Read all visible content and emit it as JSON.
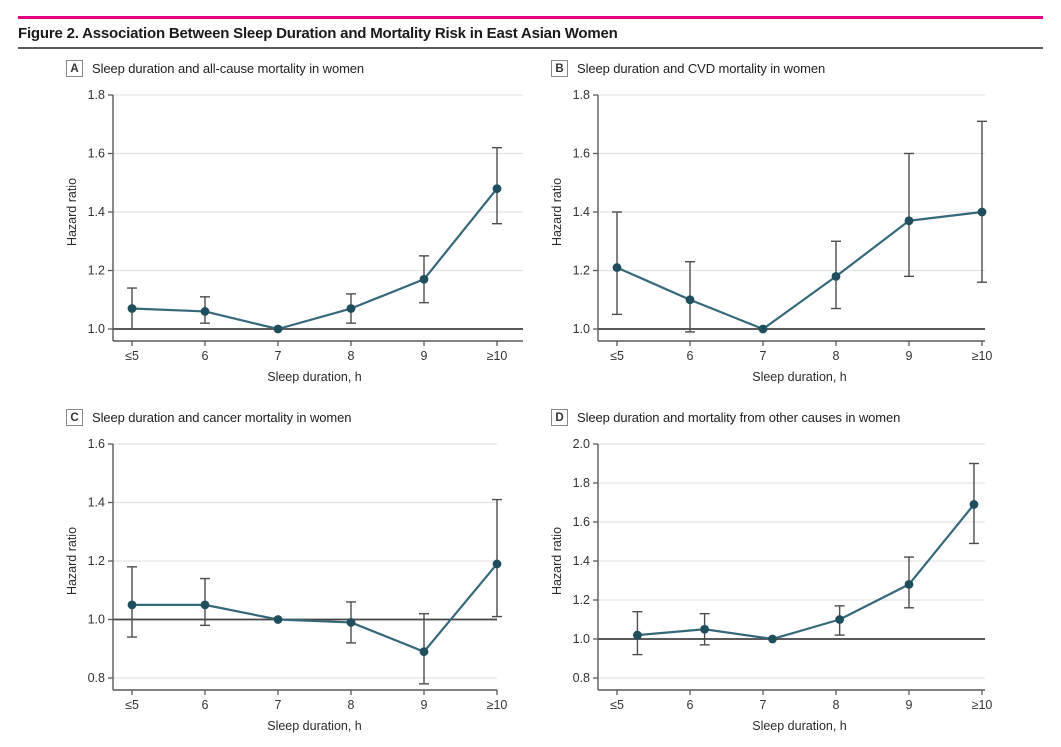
{
  "figure": {
    "title": "Figure 2. Association Between Sleep Duration and Mortality Risk in East Asian Women"
  },
  "colors": {
    "accent": "#e6007d",
    "line": "#35697a",
    "point": "#1f4e5c",
    "error_bar": "#4d4d4d",
    "grid": "#e5e5e5",
    "axis": "#5a5a5a",
    "reference": "#444444",
    "tick_text": "#333333",
    "label_text": "#2b2b2b"
  },
  "chart_data": [
    {
      "panel": "A",
      "type": "line",
      "title": "Sleep duration and all-cause mortality in women",
      "xlabel": "Sleep duration, h",
      "ylabel": "Hazard ratio",
      "categories": [
        "≤5",
        "6",
        "7",
        "8",
        "9",
        "≥10"
      ],
      "x_hours": [
        5,
        6,
        7,
        8,
        9,
        10
      ],
      "hazard_ratio": [
        1.07,
        1.06,
        1.0,
        1.07,
        1.17,
        1.48
      ],
      "ci_low": [
        1.0,
        1.02,
        null,
        1.02,
        1.09,
        1.36
      ],
      "ci_high": [
        1.14,
        1.11,
        null,
        1.12,
        1.25,
        1.62
      ],
      "yticks": [
        1.0,
        1.2,
        1.4,
        1.6,
        1.8
      ],
      "ylim": [
        1.0,
        1.8
      ],
      "reference_line": 1.0,
      "grid": true,
      "legend": null
    },
    {
      "panel": "B",
      "type": "line",
      "title": "Sleep duration and CVD mortality in women",
      "xlabel": "Sleep duration, h",
      "ylabel": "Hazard ratio",
      "categories": [
        "≤5",
        "6",
        "7",
        "8",
        "9",
        "≥10"
      ],
      "x_hours": [
        5,
        6,
        7,
        8,
        9,
        10
      ],
      "hazard_ratio": [
        1.21,
        1.1,
        1.0,
        1.18,
        1.37,
        1.4
      ],
      "ci_low": [
        1.05,
        0.99,
        null,
        1.07,
        1.18,
        1.16
      ],
      "ci_high": [
        1.4,
        1.23,
        null,
        1.3,
        1.6,
        1.71
      ],
      "yticks": [
        1.0,
        1.2,
        1.4,
        1.6,
        1.8
      ],
      "ylim": [
        1.0,
        1.8
      ],
      "reference_line": 1.0,
      "grid": true,
      "legend": null
    },
    {
      "panel": "C",
      "type": "line",
      "title": "Sleep duration and cancer mortality in women",
      "xlabel": "Sleep duration, h",
      "ylabel": "Hazard ratio",
      "categories": [
        "≤5",
        "6",
        "7",
        "8",
        "9",
        "≥10"
      ],
      "x_hours": [
        5,
        6,
        7,
        8,
        9,
        10
      ],
      "hazard_ratio": [
        1.05,
        1.05,
        1.0,
        0.99,
        0.89,
        1.19
      ],
      "ci_low": [
        0.94,
        0.98,
        null,
        0.92,
        0.78,
        1.01
      ],
      "ci_high": [
        1.18,
        1.14,
        null,
        1.06,
        1.02,
        1.41
      ],
      "yticks": [
        0.8,
        1.0,
        1.2,
        1.4,
        1.6
      ],
      "ylim": [
        0.8,
        1.6
      ],
      "reference_line": 1.0,
      "grid": true,
      "legend": null
    },
    {
      "panel": "D",
      "type": "line",
      "title": "Sleep duration and mortality from other causes in women",
      "xlabel": "Sleep duration, h",
      "ylabel": "Hazard ratio",
      "categories": [
        "≤5",
        "6",
        "7",
        "8",
        "9",
        "≥10"
      ],
      "x_hours": [
        5.28,
        6.2,
        7.13,
        8.05,
        9.0,
        9.89
      ],
      "hazard_ratio": [
        1.02,
        1.05,
        1.0,
        1.1,
        1.28,
        1.69
      ],
      "ci_low": [
        0.92,
        0.97,
        null,
        1.02,
        1.16,
        1.49
      ],
      "ci_high": [
        1.14,
        1.13,
        null,
        1.17,
        1.42,
        1.9
      ],
      "yticks": [
        0.8,
        1.0,
        1.2,
        1.4,
        1.6,
        1.8,
        2.0
      ],
      "ylim": [
        0.8,
        2.0
      ],
      "reference_line": 1.0,
      "grid": true,
      "legend": null
    }
  ]
}
